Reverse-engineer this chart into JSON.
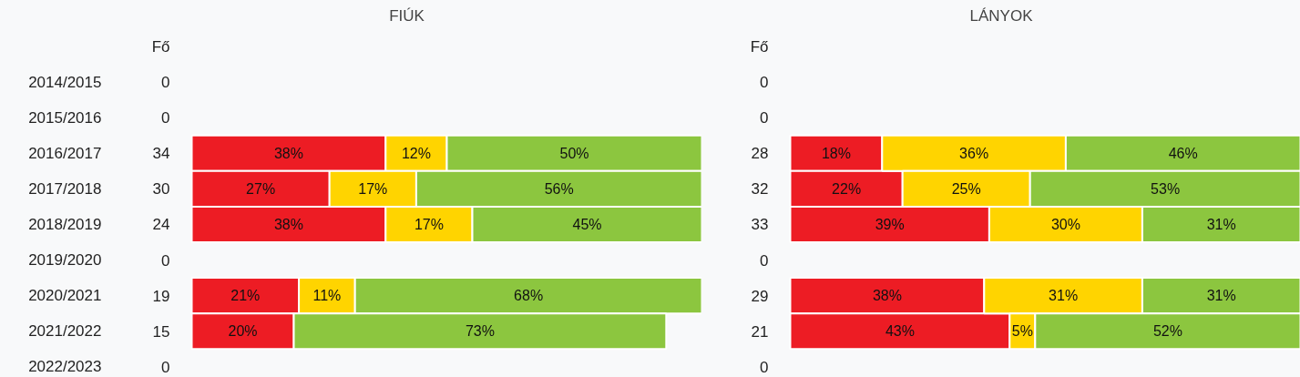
{
  "chart_data": [
    {
      "type": "bar",
      "orientation": "horizontal",
      "stacked": true,
      "title": "FIÚK",
      "tick_labels": "y",
      "xlim": [
        0,
        100
      ],
      "categories": [
        "2014/2015",
        "2015/2016",
        "2016/2017",
        "2017/2018",
        "2018/2019",
        "2019/2020",
        "2020/2021",
        "2021/2022",
        "2022/2023"
      ],
      "series": [
        {
          "color": "#ed1c24",
          "values": [
            null,
            null,
            38,
            27,
            38,
            null,
            21,
            20,
            null
          ],
          "value_labels": [
            null,
            null,
            "38%",
            "27%",
            "38%",
            null,
            "21%",
            "20%",
            null
          ]
        },
        {
          "color": "#ffd400",
          "values": [
            null,
            null,
            12,
            17,
            17,
            null,
            11,
            null,
            null
          ],
          "value_labels": [
            null,
            null,
            "12%",
            "17%",
            "17%",
            null,
            "11%",
            null,
            null
          ]
        },
        {
          "color": "#8cc63f",
          "values": [
            null,
            null,
            50,
            56,
            45,
            null,
            68,
            73,
            null
          ],
          "value_labels": [
            null,
            null,
            "50%",
            "56%",
            "45%",
            null,
            "68%",
            "73%",
            null
          ]
        }
      ],
      "annotations": [
        "Fő",
        "0",
        "0",
        "34",
        "30",
        "24",
        "0",
        "19",
        "15",
        "0"
      ]
    },
    {
      "type": "bar",
      "orientation": "horizontal",
      "stacked": true,
      "title": "LÁNYOK",
      "tick_labels": false,
      "xlim": [
        0,
        100
      ],
      "categories": [
        null,
        null,
        null,
        null,
        null,
        null,
        null,
        null,
        null
      ],
      "series": [
        {
          "color": "#ed1c24",
          "values": [
            null,
            null,
            18,
            22,
            39,
            null,
            38,
            43,
            null
          ],
          "value_labels": [
            null,
            null,
            "18%",
            "22%",
            "39%",
            null,
            "38%",
            "43%",
            null
          ]
        },
        {
          "color": "#ffd400",
          "values": [
            null,
            null,
            36,
            25,
            30,
            null,
            31,
            5,
            null
          ],
          "value_labels": [
            null,
            null,
            "36%",
            "25%",
            "30%",
            null,
            "31%",
            "5%",
            null
          ]
        },
        {
          "color": "#8cc63f",
          "values": [
            null,
            null,
            46,
            53,
            31,
            null,
            31,
            52,
            null
          ],
          "value_labels": [
            null,
            null,
            "46%",
            "53%",
            "31%",
            null,
            "31%",
            "52%",
            null
          ]
        }
      ],
      "annotations": [
        "Fő",
        "0",
        "0",
        "28",
        "32",
        "33",
        "0",
        "29",
        "21",
        "0"
      ]
    }
  ]
}
